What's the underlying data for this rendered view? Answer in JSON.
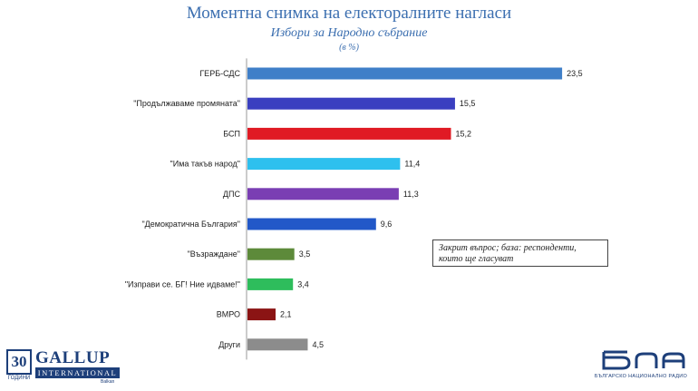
{
  "header": {
    "title": "Моментна снимка на електоралните нагласи",
    "subtitle": "Избори за Народно събрание",
    "unit": "(в %)"
  },
  "note": "Закрит въпрос; база: респонденти, които ще гласуват",
  "logos": {
    "gallup_number": "30",
    "gallup_years": "ГОДИНИ",
    "gallup_name": "GALLUP",
    "gallup_international": "INTERNATIONAL",
    "gallup_city": "Balkan",
    "bnr_mark": "бнр",
    "bnr_tagline": "БЪЛГАРСКО НАЦИОНАЛНО РАДИО"
  },
  "chart_data": {
    "type": "bar",
    "orientation": "horizontal",
    "title": "Моментна снимка на електоралните нагласи",
    "subtitle": "Избори за Народно събрание",
    "unit": "(в %)",
    "categories": [
      "ГЕРБ-СДС",
      "\"Продължаваме промяната\"",
      "БСП",
      "\"Има такъв народ\"",
      "ДПС",
      "\"Демократична България\"",
      "\"Възраждане\"",
      "\"Изправи се. БГ! Ние идваме!\"",
      "ВМРО",
      "Други"
    ],
    "values": [
      23.5,
      15.5,
      15.2,
      11.4,
      11.3,
      9.6,
      3.5,
      3.4,
      2.1,
      4.5
    ],
    "value_labels": [
      "23,5",
      "15,5",
      "15,2",
      "11,4",
      "11,3",
      "9,6",
      "3,5",
      "3,4",
      "2,1",
      "4,5"
    ],
    "colors": [
      "#3f7fc8",
      "#3a3fc0",
      "#e01a24",
      "#2ec0ee",
      "#7a3eb3",
      "#2258c8",
      "#5d8a3a",
      "#2ebd5c",
      "#8b1414",
      "#8c8c8c"
    ],
    "xlim": [
      0,
      25
    ],
    "grid": false,
    "legend": "none"
  }
}
